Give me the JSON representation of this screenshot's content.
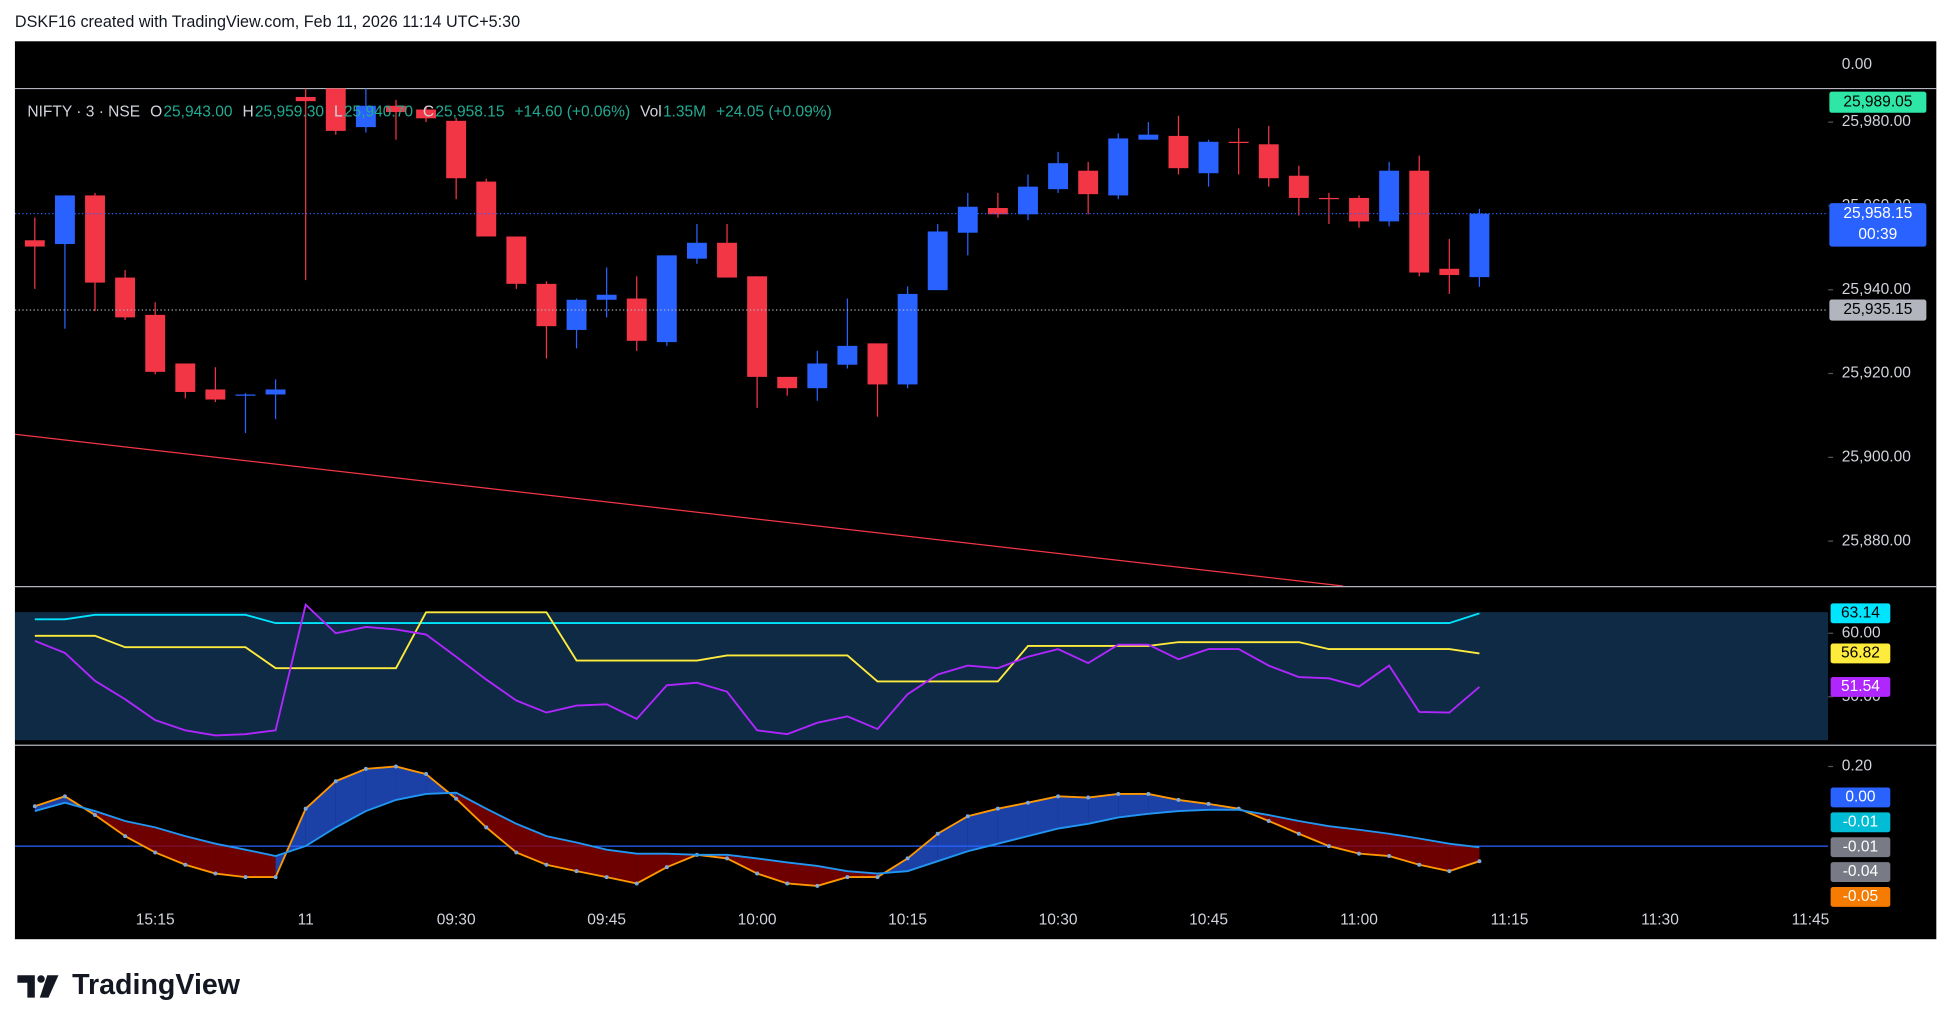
{
  "header": {
    "title": "DSKF16 created with TradingView.com, Feb 11, 2026 11:14 UTC+5:30"
  },
  "footer": {
    "brand": "TradingView"
  },
  "chart_data": [
    {
      "type": "candlestick",
      "legend_items": [
        {
          "text": "NIFTY · 3 · NSE",
          "color": "#d1d4dc"
        },
        {
          "text": "O",
          "color": "#d1d4dc"
        },
        {
          "text": "25,943.00",
          "color": "#22ab94"
        },
        {
          "text": "H",
          "color": "#d1d4dc"
        },
        {
          "text": "25,959.30",
          "color": "#22ab94"
        },
        {
          "text": "L",
          "color": "#d1d4dc"
        },
        {
          "text": "25,940.70",
          "color": "#22ab94"
        },
        {
          "text": "C",
          "color": "#d1d4dc"
        },
        {
          "text": "25,958.15",
          "color": "#22ab94"
        },
        {
          "text": "+14.60 (+0.06%)",
          "color": "#22ab94"
        },
        {
          "text": "Vol",
          "color": "#d1d4dc"
        },
        {
          "text": "1.35M",
          "color": "#22ab94"
        },
        {
          "text": "+24.05 (+0.09%)",
          "color": "#22ab94"
        }
      ],
      "top_label": "0.00",
      "up_color": "#2962ff",
      "down_color": "#f23645",
      "ohlc": [
        [
          25951.8,
          25957.2,
          25940.2,
          25950.3
        ],
        [
          25950.9,
          25962.5,
          25930.7,
          25962.5
        ],
        [
          25962.5,
          25963.1,
          25934.9,
          25941.7
        ],
        [
          25942.9,
          25944.7,
          25932.8,
          25933.4
        ],
        [
          25934.0,
          25937.0,
          25919.8,
          25920.4
        ],
        [
          25922.4,
          25922.4,
          25914.1,
          25915.6
        ],
        [
          25916.2,
          25921.5,
          25913.2,
          25913.8
        ],
        [
          25914.7,
          25915.3,
          25905.8,
          25915.0
        ],
        [
          25915.0,
          25918.6,
          25909.1,
          25916.2
        ],
        [
          25986.0,
          25995.0,
          25942.3,
          25985.0
        ],
        [
          25990.0,
          25995.0,
          25977.0,
          25977.9
        ],
        [
          25978.8,
          25990.0,
          25977.5,
          25983.9
        ],
        [
          25983.9,
          25985.3,
          25975.8,
          25982.4
        ],
        [
          25983.0,
          25983.9,
          25980.0,
          25980.9
        ],
        [
          25980.3,
          25981.0,
          25961.6,
          25966.6
        ],
        [
          25965.8,
          25966.5,
          25952.7,
          25952.7
        ],
        [
          25952.7,
          25952.7,
          25940.2,
          25941.4
        ],
        [
          25941.4,
          25942.0,
          25923.6,
          25931.3
        ],
        [
          25930.4,
          25937.9,
          25926.0,
          25937.6
        ],
        [
          25937.6,
          25945.3,
          25933.4,
          25938.8
        ],
        [
          25937.9,
          25943.2,
          25925.4,
          25927.8
        ],
        [
          25927.5,
          25948.2,
          25926.6,
          25948.2
        ],
        [
          25947.4,
          25955.7,
          25946.2,
          25951.2
        ],
        [
          25951.2,
          25955.7,
          25942.9,
          25942.9
        ],
        [
          25943.2,
          25943.2,
          25911.8,
          25919.2
        ],
        [
          25919.2,
          25919.2,
          25914.7,
          25916.5
        ],
        [
          25916.5,
          25925.4,
          25913.5,
          25922.4
        ],
        [
          25922.1,
          25937.9,
          25921.2,
          25926.6
        ],
        [
          25927.2,
          25927.2,
          25909.7,
          25917.4
        ],
        [
          25917.4,
          25940.8,
          25916.5,
          25939.0
        ],
        [
          25939.9,
          25955.7,
          25939.9,
          25953.9
        ],
        [
          25953.6,
          25963.1,
          25948.2,
          25959.8
        ],
        [
          25959.5,
          25963.1,
          25957.2,
          25958.0
        ],
        [
          25958.0,
          25967.5,
          25956.6,
          25964.6
        ],
        [
          25964.0,
          25972.9,
          25963.1,
          25970.2
        ],
        [
          25968.4,
          25970.5,
          25958.0,
          25962.8
        ],
        [
          25962.5,
          25977.3,
          25961.6,
          25976.1
        ],
        [
          25975.8,
          25980.0,
          25975.8,
          25977.0
        ],
        [
          25976.7,
          25981.5,
          25967.5,
          25969.0
        ],
        [
          25967.8,
          25975.8,
          25964.6,
          25975.3
        ],
        [
          25975.3,
          25978.5,
          25967.5,
          25975.0
        ],
        [
          25974.7,
          25979.1,
          25964.6,
          25966.6
        ],
        [
          25967.2,
          25969.6,
          25957.7,
          25961.9
        ],
        [
          25961.9,
          25963.1,
          25955.7,
          25961.6
        ],
        [
          25961.9,
          25962.5,
          25954.8,
          25956.3
        ],
        [
          25956.3,
          25970.5,
          25955.1,
          25968.4
        ],
        [
          25968.4,
          25972.0,
          25943.2,
          25944.1
        ],
        [
          25945.0,
          25952.1,
          25939.0,
          25943.5
        ],
        [
          25943.0,
          25959.3,
          25940.7,
          25958.15
        ]
      ],
      "trend_line": {
        "values": [
          25905.5,
          25869.3
        ],
        "color": "#f23645"
      },
      "ylim": [
        25869.3,
        25988.0
      ],
      "yticks": [
        {
          "value": 25880,
          "label": "25,880.00"
        },
        {
          "value": 25900,
          "label": "25,900.00"
        },
        {
          "value": 25920,
          "label": "25,920.00"
        },
        {
          "value": 25940,
          "label": "25,940.00"
        },
        {
          "value": 25960,
          "label": "25,960.00"
        },
        {
          "value": 25980,
          "label": "25,980.00"
        }
      ],
      "price_labels": [
        {
          "value": 25989.05,
          "label": "25,989.05",
          "color": "#2ee6a6",
          "text_color": "#000000"
        },
        {
          "value": 25958.15,
          "label": "25,958.15",
          "sublabel": "00:39",
          "color": "#2962ff",
          "text_color": "#ffffff",
          "line": true
        },
        {
          "value": 25935.15,
          "label": "25,935.15",
          "color": "#b2b5be",
          "text_color": "#000000",
          "line": true
        }
      ],
      "xtick_labels": [
        "15:15",
        "11",
        "09:30",
        "09:45",
        "10:00",
        "10:15",
        "10:30",
        "10:45",
        "11:00",
        "11:15",
        "11:30",
        "11:45"
      ]
    },
    {
      "type": "line",
      "band_color": "#0e2a44",
      "series": [
        {
          "color": "#00e5ff",
          "values": [
            62.2,
            62.2,
            62.9,
            62.9,
            62.9,
            62.9,
            62.9,
            62.9,
            61.6,
            61.6,
            61.6,
            61.6,
            61.6,
            61.6,
            61.6,
            61.6,
            61.6,
            61.6,
            61.6,
            61.6,
            61.6,
            61.6,
            61.6,
            61.6,
            61.6,
            61.6,
            61.6,
            61.6,
            61.6,
            61.6,
            61.6,
            61.6,
            61.6,
            61.6,
            61.6,
            61.6,
            61.6,
            61.6,
            61.6,
            61.6,
            61.6,
            61.6,
            61.6,
            61.6,
            61.6,
            61.6,
            61.6,
            61.6,
            63.14
          ]
        },
        {
          "color": "#ffeb3b",
          "values": [
            59.6,
            59.6,
            59.6,
            57.8,
            57.8,
            57.8,
            57.8,
            57.8,
            54.5,
            54.5,
            54.5,
            54.5,
            54.5,
            63.3,
            63.3,
            63.3,
            63.3,
            63.3,
            55.7,
            55.7,
            55.7,
            55.7,
            55.7,
            56.5,
            56.5,
            56.5,
            56.5,
            56.5,
            52.4,
            52.4,
            52.4,
            52.4,
            52.4,
            58.0,
            58.0,
            58.0,
            58.0,
            58.0,
            58.6,
            58.6,
            58.6,
            58.6,
            58.6,
            57.5,
            57.5,
            57.5,
            57.5,
            57.5,
            56.82
          ]
        },
        {
          "color": "#b026ff",
          "values": [
            58.8,
            56.9,
            52.5,
            49.6,
            46.3,
            44.7,
            43.9,
            44.1,
            44.7,
            64.5,
            60.0,
            61.0,
            60.6,
            59.8,
            56.3,
            52.7,
            49.4,
            47.5,
            48.6,
            48.8,
            46.5,
            51.8,
            52.2,
            50.8,
            44.7,
            44.1,
            45.9,
            46.9,
            44.9,
            50.4,
            53.5,
            54.9,
            54.5,
            56.3,
            57.5,
            55.3,
            58.2,
            58.2,
            55.9,
            57.5,
            57.5,
            54.9,
            53.1,
            52.9,
            51.6,
            54.9,
            47.6,
            47.5,
            51.54
          ]
        }
      ],
      "ylim": [
        42.75,
        67.25
      ],
      "yticks": [
        {
          "value": 60,
          "label": "60.00"
        },
        {
          "value": 50,
          "label": "50.00"
        }
      ]
    },
    {
      "type": "line",
      "fill_between": {
        "up": "#2962ff",
        "down": "#8b0000"
      },
      "zero_line_color": "#2962ff",
      "series": [
        {
          "color": "#ff9800",
          "markers": true,
          "values": [
            0.1,
            0.125,
            0.078,
            0.025,
            -0.016,
            -0.047,
            -0.069,
            -0.078,
            -0.078,
            0.094,
            0.163,
            0.194,
            0.2,
            0.181,
            0.119,
            0.047,
            -0.016,
            -0.047,
            -0.063,
            -0.078,
            -0.094,
            -0.053,
            -0.022,
            -0.031,
            -0.069,
            -0.094,
            -0.1,
            -0.078,
            -0.078,
            -0.031,
            0.031,
            0.075,
            0.094,
            0.109,
            0.125,
            0.122,
            0.131,
            0.131,
            0.116,
            0.106,
            0.094,
            0.063,
            0.031,
            0,
            -0.019,
            -0.025,
            -0.047,
            -0.063,
            -0.038
          ]
        },
        {
          "color": "#2196f3",
          "values": [
            0.088,
            0.109,
            0.088,
            0.063,
            0.047,
            0.025,
            0.006,
            -0.009,
            -0.025,
            0,
            0.047,
            0.088,
            0.116,
            0.131,
            0.134,
            0.094,
            0.056,
            0.025,
            0.009,
            -0.009,
            -0.019,
            -0.019,
            -0.022,
            -0.022,
            -0.031,
            -0.041,
            -0.05,
            -0.063,
            -0.069,
            -0.063,
            -0.038,
            -0.013,
            0.006,
            0.025,
            0.044,
            0.056,
            0.072,
            0.081,
            0.088,
            0.091,
            0.091,
            0.078,
            0.063,
            0.05,
            0.041,
            0.031,
            0.019,
            0.006,
            -0.003
          ]
        }
      ],
      "ylim": [
        -0.234,
        0.241
      ],
      "yticks": [
        {
          "value": 0.2,
          "label": "0.20"
        }
      ],
      "last_labels": [
        {
          "label": "0.00",
          "color": "#2962ff"
        },
        {
          "label": "-0.01",
          "color": "#00bcd4"
        },
        {
          "label": "-0.01",
          "color": "#787b86"
        },
        {
          "label": "-0.04",
          "color": "#787b86"
        },
        {
          "label": "-0.05",
          "color": "#f57c00"
        }
      ]
    }
  ]
}
